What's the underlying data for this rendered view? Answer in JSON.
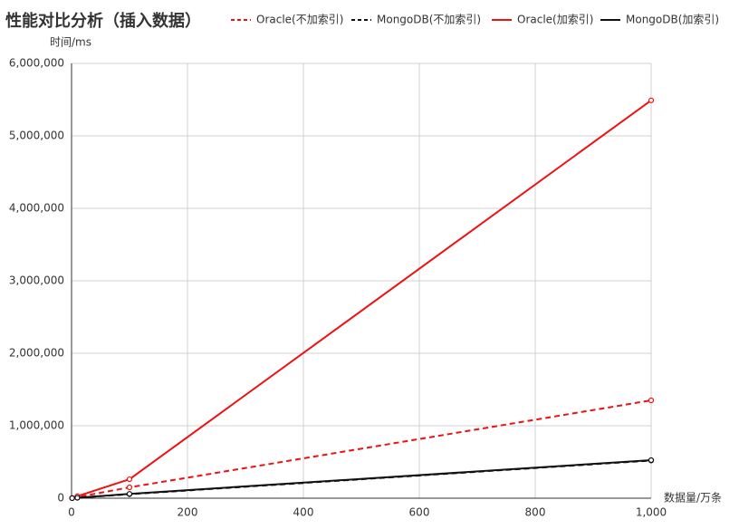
{
  "chart_data": {
    "type": "line",
    "title": "性能对比分析（插入数据）",
    "y_label": "时间/ms",
    "x_label": "数据量/万条",
    "x": [
      1,
      10,
      100,
      1000
    ],
    "series": [
      {
        "name": "Oracle(不加索引)",
        "color": "#ee1111",
        "dashed": true,
        "values": [
          1500,
          14000,
          150000,
          1350000
        ]
      },
      {
        "name": "MongoDB(不加索引)",
        "color": "#111111",
        "dashed": true,
        "values": [
          600,
          5500,
          55000,
          520000
        ]
      },
      {
        "name": "Oracle(加索引)",
        "color": "#ee1111",
        "dashed": false,
        "values": [
          3000,
          28000,
          262000,
          5490000
        ]
      },
      {
        "name": "MongoDB(加索引)",
        "color": "#111111",
        "dashed": false,
        "values": [
          650,
          6000,
          60000,
          525000
        ]
      }
    ],
    "xlim": [
      0,
      1000
    ],
    "xticks": [
      0,
      200,
      400,
      600,
      800,
      {
        "value": 1000,
        "label": "1,000"
      }
    ],
    "ylim": [
      0,
      6000000
    ],
    "yticks": [
      0,
      {
        "value": 1000000,
        "label": "1,000,000"
      },
      {
        "value": 2000000,
        "label": "2,000,000"
      },
      {
        "value": 3000000,
        "label": "3,000,000"
      },
      {
        "value": 4000000,
        "label": "4,000,000"
      },
      {
        "value": 5000000,
        "label": "5,000,000"
      },
      {
        "value": 6000000,
        "label": "6,000,000"
      }
    ],
    "grid": true
  }
}
